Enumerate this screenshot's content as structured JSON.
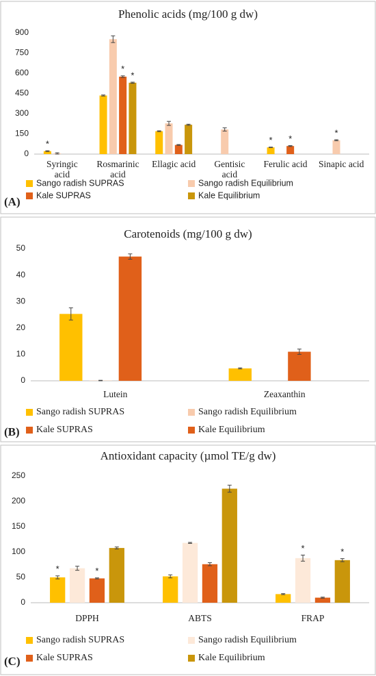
{
  "chart_data": [
    {
      "type": "bar",
      "panel": "(A)",
      "title": "Phenolic acids (mg/100 g dw)",
      "categories": [
        "Syringic\nacid",
        "Rosmarinic\nacid",
        "Ellagic acid",
        "Gentisic\nacid",
        "Ferulic acid",
        "Sinapic acid"
      ],
      "ylim": [
        0,
        900
      ],
      "yticks": [
        0,
        150,
        300,
        450,
        600,
        750,
        900
      ],
      "grid": false,
      "series": [
        {
          "name": "Sango radish SUPRAS",
          "color": "#ffc000",
          "values": [
            22,
            435,
            170,
            0,
            50,
            0
          ],
          "errors": [
            3,
            4,
            3,
            null,
            2,
            null
          ],
          "significance": [
            "*",
            null,
            null,
            null,
            "*",
            null
          ]
        },
        {
          "name": "Sango radish Equilibrium",
          "color": "#f8cbad",
          "values": [
            5,
            853,
            228,
            183,
            0,
            103
          ],
          "errors": [
            5,
            25,
            15,
            12,
            null,
            4
          ],
          "significance": [
            null,
            null,
            null,
            null,
            null,
            "*"
          ]
        },
        {
          "name": "Kale SUPRAS",
          "color": "#e0601a",
          "values": [
            0,
            575,
            68,
            0,
            60,
            0
          ],
          "errors": [
            null,
            6,
            3,
            null,
            3,
            null
          ],
          "significance": [
            null,
            "*",
            null,
            null,
            "*",
            null
          ]
        },
        {
          "name": "Kale Equilibrium",
          "color": "#c9960b",
          "values": [
            0,
            530,
            218,
            0,
            0,
            0
          ],
          "errors": [
            null,
            4,
            4,
            null,
            null,
            null
          ],
          "significance": [
            null,
            "*",
            null,
            null,
            null,
            null
          ]
        }
      ]
    },
    {
      "type": "bar",
      "panel": "(B)",
      "title": "Carotenoids (mg/100 g dw)",
      "categories": [
        "Lutein",
        "Zeaxanthin"
      ],
      "ylim": [
        0,
        50
      ],
      "yticks": [
        0,
        10,
        20,
        30,
        40,
        50
      ],
      "grid": false,
      "series": [
        {
          "name": "Sango radish SUPRAS",
          "color": "#ffc000",
          "values": [
            25.3,
            4.7
          ],
          "errors": [
            2.3,
            0.2
          ],
          "significance": [
            null,
            null
          ]
        },
        {
          "name": "Sango radish Equilibrium",
          "color": "#f8cbad",
          "values": [
            0.1,
            0
          ],
          "errors": [
            0.1,
            null
          ],
          "significance": [
            null,
            null
          ]
        },
        {
          "name": "Kale SUPRAS",
          "color": "#e0601a",
          "values": [
            47,
            11
          ],
          "errors": [
            1,
            1
          ],
          "significance": [
            null,
            null
          ]
        },
        {
          "name": "Kale Equilibrium",
          "color": "#e0601a",
          "values": [
            0,
            0
          ],
          "errors": [
            null,
            null
          ],
          "significance": [
            null,
            null
          ]
        }
      ]
    },
    {
      "type": "bar",
      "panel": "(C)",
      "title": "Antioxidant capacity (µmol TE/g dw)",
      "categories": [
        "DPPH",
        "ABTS",
        "FRAP"
      ],
      "ylim": [
        0,
        250
      ],
      "yticks": [
        0,
        50,
        100,
        150,
        200,
        250
      ],
      "grid": false,
      "series": [
        {
          "name": "Sango radish SUPRAS",
          "color": "#ffc000",
          "values": [
            50,
            52,
            17
          ],
          "errors": [
            3,
            3,
            1
          ],
          "significance": [
            "*",
            null,
            null
          ]
        },
        {
          "name": "Sango radish Equilibrium",
          "color": "#fde9d9",
          "values": [
            68,
            118,
            88
          ],
          "errors": [
            4,
            1,
            6
          ],
          "significance": [
            null,
            null,
            "*"
          ]
        },
        {
          "name": "Kale SUPRAS",
          "color": "#e0601a",
          "values": [
            48,
            76,
            10
          ],
          "errors": [
            1,
            3,
            1
          ],
          "significance": [
            "*",
            null,
            null
          ]
        },
        {
          "name": "Kale Equilibrium",
          "color": "#c9960b",
          "values": [
            108,
            225,
            84
          ],
          "errors": [
            2,
            7,
            3
          ],
          "significance": [
            null,
            null,
            "*"
          ]
        }
      ]
    }
  ]
}
